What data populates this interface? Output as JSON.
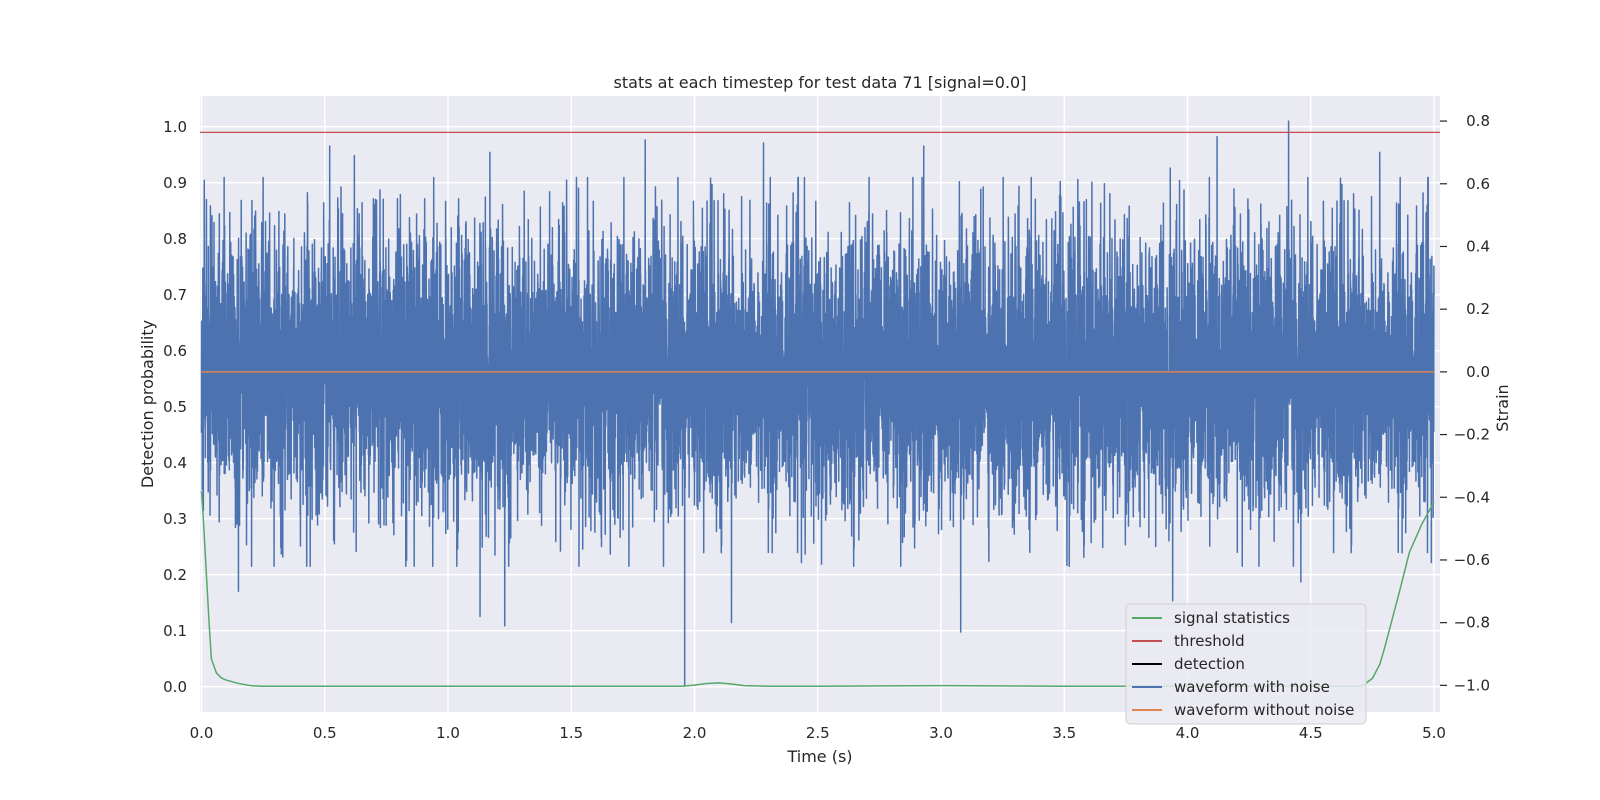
{
  "chart_data": {
    "type": "line",
    "title": "stats at each timestep for test data 71 [signal=0.0]",
    "xlabel": "Time (s)",
    "ylabel": "Detection probability",
    "y2label": "Strain",
    "xlim": [
      0.0,
      5.0
    ],
    "ylim": [
      -0.045,
      1.055
    ],
    "y2lim": [
      -1.085,
      0.88
    ],
    "xticks": [
      0.0,
      0.5,
      1.0,
      1.5,
      2.0,
      2.5,
      3.0,
      3.5,
      4.0,
      4.5,
      5.0
    ],
    "xtick_labels": [
      "0.0",
      "0.5",
      "1.0",
      "1.5",
      "2.0",
      "2.5",
      "3.0",
      "3.5",
      "4.0",
      "4.5",
      "5.0"
    ],
    "yticks": [
      0.0,
      0.1,
      0.2,
      0.3,
      0.4,
      0.5,
      0.6,
      0.7,
      0.8,
      0.9,
      1.0
    ],
    "ytick_labels": [
      "0.0",
      "0.1",
      "0.2",
      "0.3",
      "0.4",
      "0.5",
      "0.6",
      "0.7",
      "0.8",
      "0.9",
      "1.0"
    ],
    "y2ticks": [
      -1.0,
      -0.8,
      -0.6,
      -0.4,
      -0.2,
      0.0,
      0.2,
      0.4,
      0.6,
      0.8
    ],
    "y2tick_labels": [
      "−1.0",
      "−0.8",
      "−0.6",
      "−0.4",
      "−0.2",
      "0.0",
      "0.2",
      "0.4",
      "0.6",
      "0.8"
    ],
    "grid": true,
    "legend_position": "lower-right",
    "colors": {
      "plot_bg": "#eaeaf2",
      "grid": "#ffffff",
      "signal_statistics": "#55a868",
      "threshold": "#c44e52",
      "detection": "#000000",
      "waveform_with_noise": "#4c72b0",
      "waveform_without_noise": "#dd8452"
    },
    "legend": [
      {
        "key": "signal_statistics",
        "label": "signal statistics"
      },
      {
        "key": "threshold",
        "label": "threshold"
      },
      {
        "key": "detection",
        "label": "detection"
      },
      {
        "key": "waveform_with_noise",
        "label": "waveform with noise"
      },
      {
        "key": "waveform_without_noise",
        "label": "waveform without noise"
      }
    ],
    "series": [
      {
        "key": "signal_statistics",
        "axis": "left",
        "x": [
          0.0,
          0.01,
          0.02,
          0.03,
          0.04,
          0.06,
          0.08,
          0.1,
          0.15,
          0.2,
          0.25,
          0.5,
          1.0,
          1.5,
          1.95,
          2.0,
          2.05,
          2.1,
          2.15,
          2.2,
          2.3,
          2.5,
          3.0,
          3.5,
          4.0,
          4.5,
          4.7,
          4.72,
          4.75,
          4.78,
          4.8,
          4.83,
          4.86,
          4.9,
          4.95,
          5.0
        ],
        "y": [
          0.35,
          0.28,
          0.2,
          0.12,
          0.05,
          0.025,
          0.016,
          0.012,
          0.006,
          0.002,
          0.001,
          0.001,
          0.001,
          0.001,
          0.001,
          0.003,
          0.006,
          0.007,
          0.005,
          0.002,
          0.001,
          0.001,
          0.002,
          0.001,
          0.001,
          0.001,
          0.001,
          0.005,
          0.015,
          0.04,
          0.07,
          0.12,
          0.17,
          0.24,
          0.29,
          0.33
        ]
      },
      {
        "key": "threshold",
        "axis": "left",
        "x": [
          0.0,
          5.0
        ],
        "y": [
          0.99,
          0.99
        ]
      },
      {
        "key": "waveform_without_noise",
        "axis": "right",
        "x": [
          0.0,
          5.0
        ],
        "y": [
          0.0,
          0.0
        ]
      },
      {
        "key": "waveform_with_noise",
        "axis": "right",
        "sample_rate_hz": 2048,
        "typical_range": [
          -0.5,
          0.5
        ],
        "notable_extremes": [
          {
            "x": 0.02,
            "y": 0.55
          },
          {
            "x": 0.15,
            "y": -0.7
          },
          {
            "x": 0.52,
            "y": 0.72
          },
          {
            "x": 0.62,
            "y": 0.69
          },
          {
            "x": 1.13,
            "y": -0.78
          },
          {
            "x": 1.23,
            "y": -0.81
          },
          {
            "x": 1.17,
            "y": 0.7
          },
          {
            "x": 1.8,
            "y": 0.74
          },
          {
            "x": 1.96,
            "y": -1.0
          },
          {
            "x": 2.15,
            "y": -0.8
          },
          {
            "x": 2.28,
            "y": 0.73
          },
          {
            "x": 2.93,
            "y": 0.72
          },
          {
            "x": 3.08,
            "y": -0.83
          },
          {
            "x": 3.93,
            "y": 0.65
          },
          {
            "x": 3.94,
            "y": -0.73
          },
          {
            "x": 4.12,
            "y": 0.75
          },
          {
            "x": 4.41,
            "y": 0.8
          },
          {
            "x": 4.46,
            "y": -0.67
          },
          {
            "x": 4.78,
            "y": 0.7
          }
        ]
      }
    ]
  }
}
